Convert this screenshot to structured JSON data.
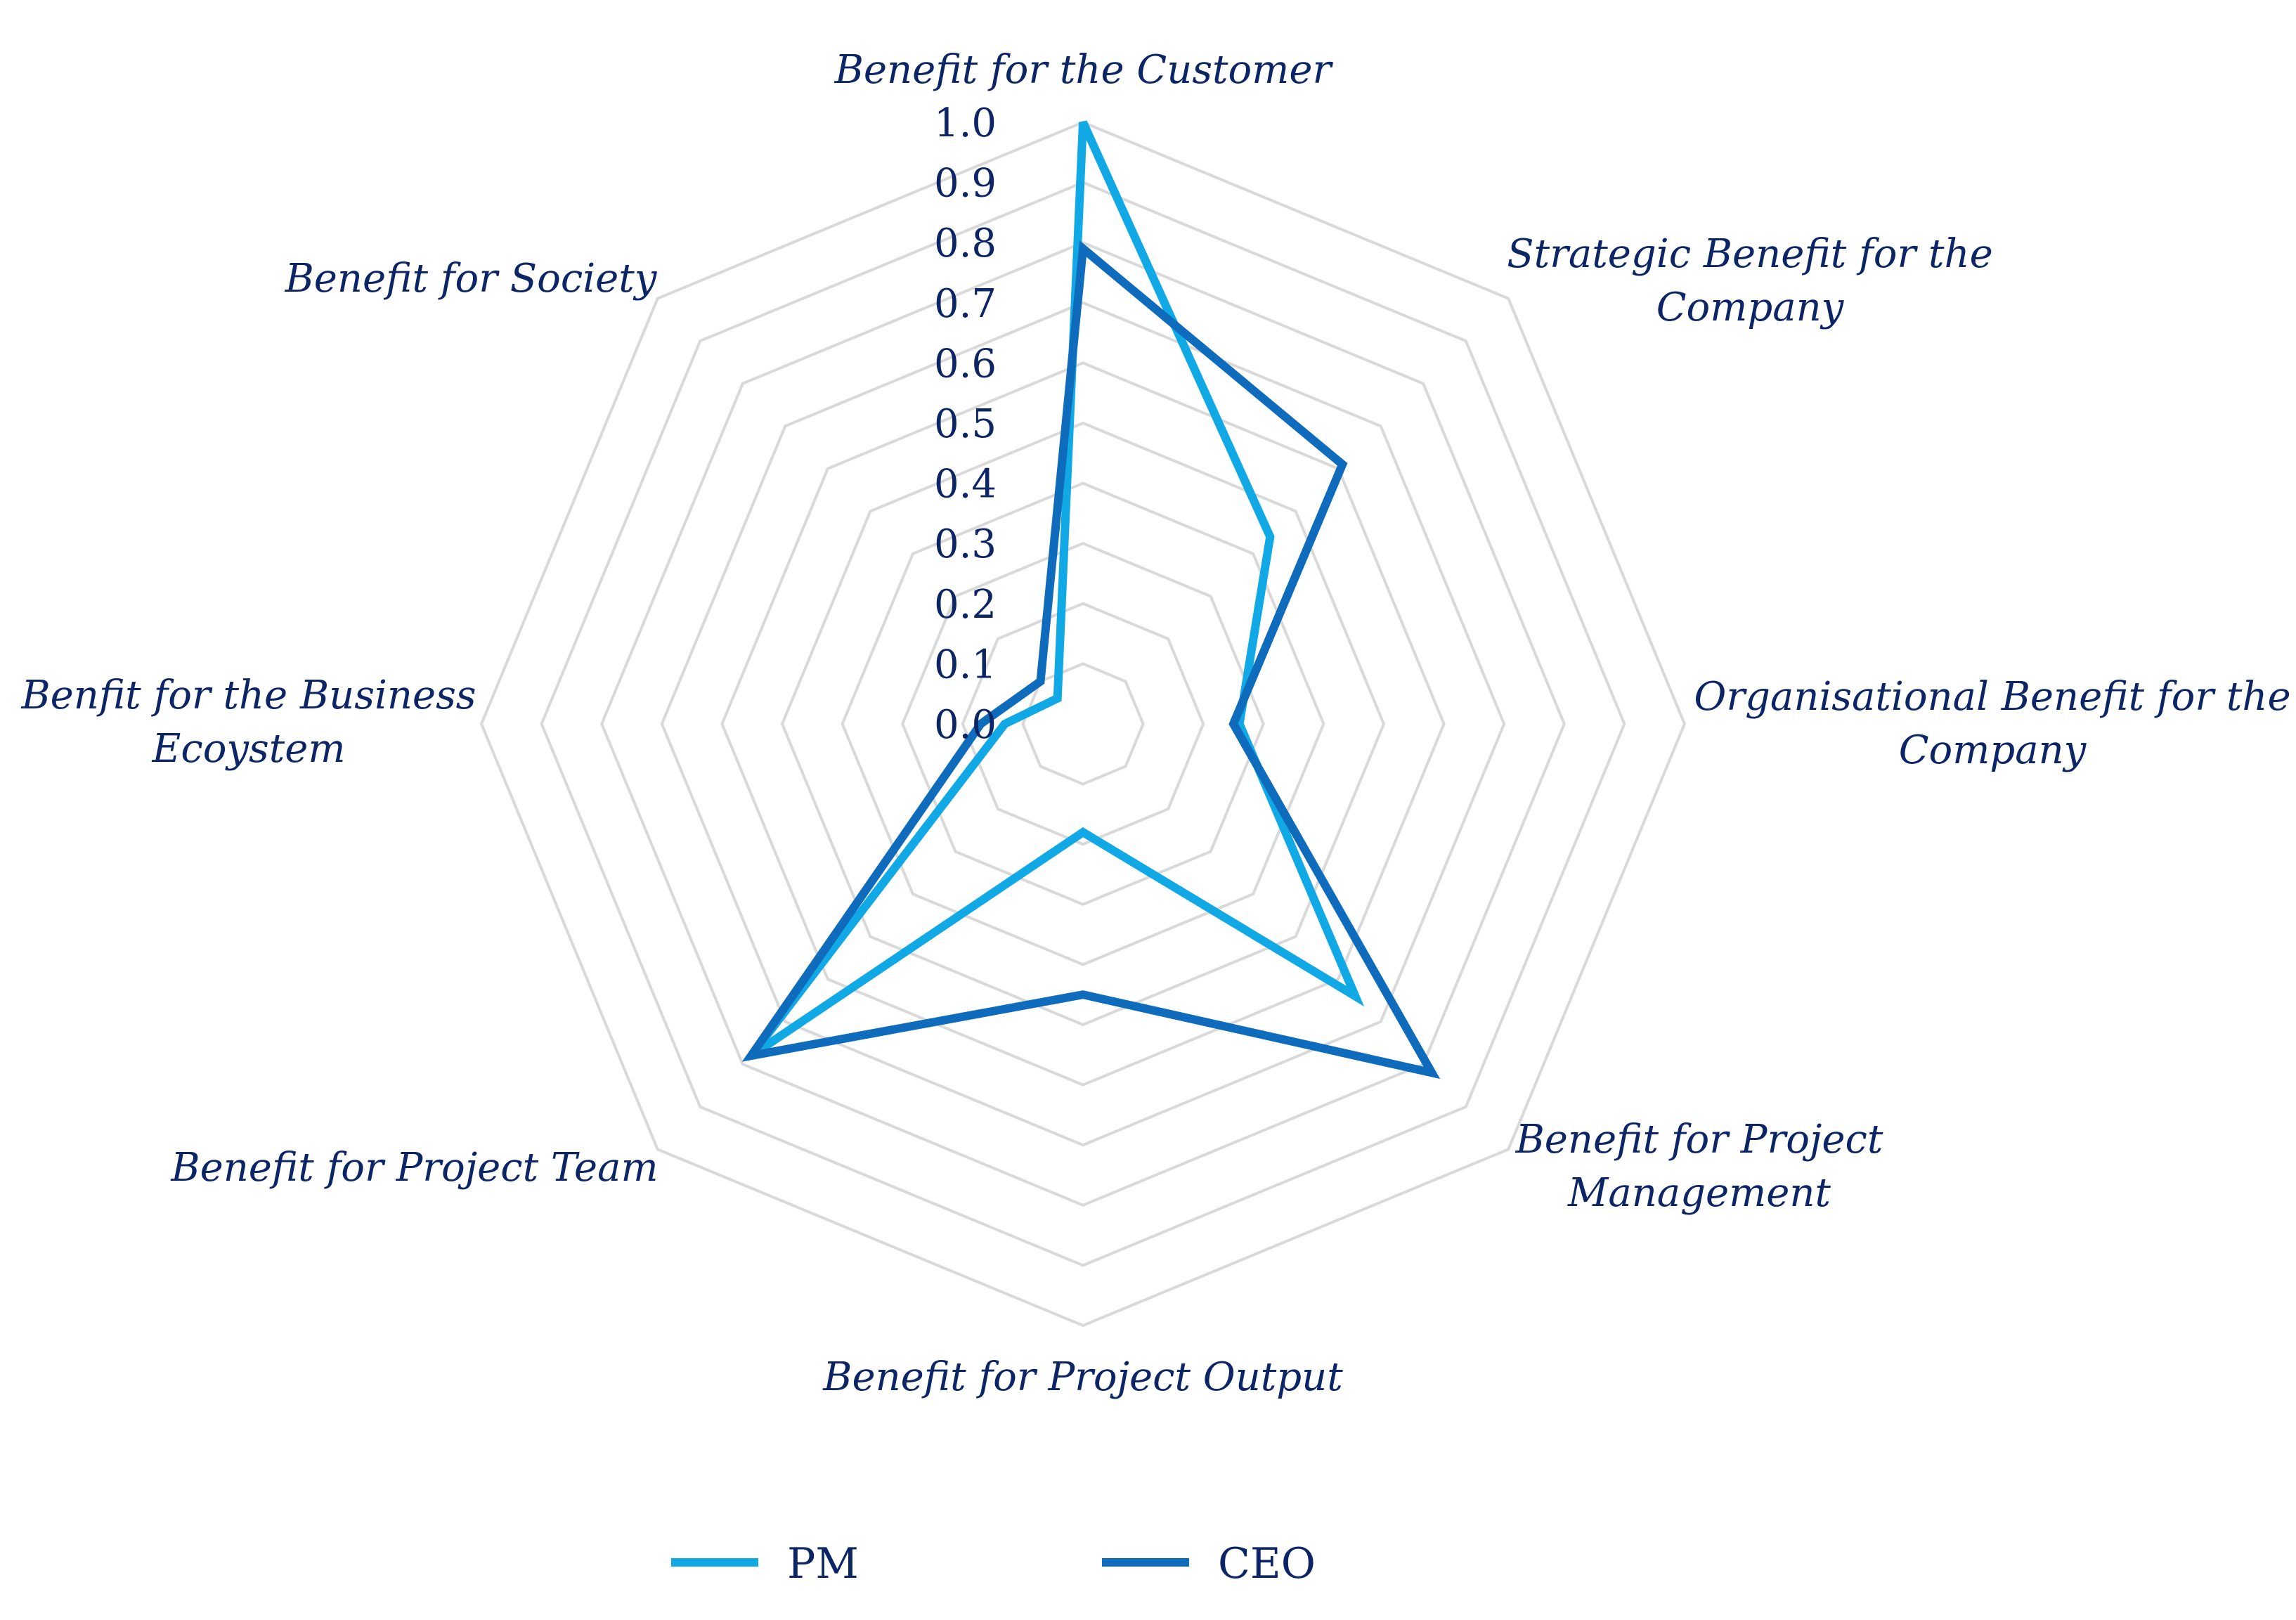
{
  "chart_data": {
    "type": "radar",
    "title": "",
    "axes": [
      [
        "Benefit for the Customer"
      ],
      [
        "Strategic Benefit for the",
        "Company"
      ],
      [
        "Organisational Benefit for the",
        "Company"
      ],
      [
        "Benefit for Project",
        "Management"
      ],
      [
        "Benefit for Project Output"
      ],
      [
        "Benefit for Project Team"
      ],
      [
        "Benfit for the Business",
        "Ecoystem"
      ],
      [
        "Benefit for Society"
      ]
    ],
    "rlim": [
      0,
      1.0
    ],
    "ticks": [
      "0.0",
      "0.1",
      "0.2",
      "0.3",
      "0.4",
      "0.5",
      "0.6",
      "0.7",
      "0.8",
      "0.9",
      "1.0"
    ],
    "grid": true,
    "legend_position": "bottom",
    "series": [
      {
        "name": "PM",
        "color": "#11a8e6",
        "values": [
          1.0,
          0.44,
          0.26,
          0.64,
          0.18,
          0.78,
          0.13,
          0.06
        ]
      },
      {
        "name": "CEO",
        "color": "#0f6cbd",
        "values": [
          0.79,
          0.61,
          0.25,
          0.82,
          0.45,
          0.78,
          0.17,
          0.1
        ]
      }
    ]
  }
}
